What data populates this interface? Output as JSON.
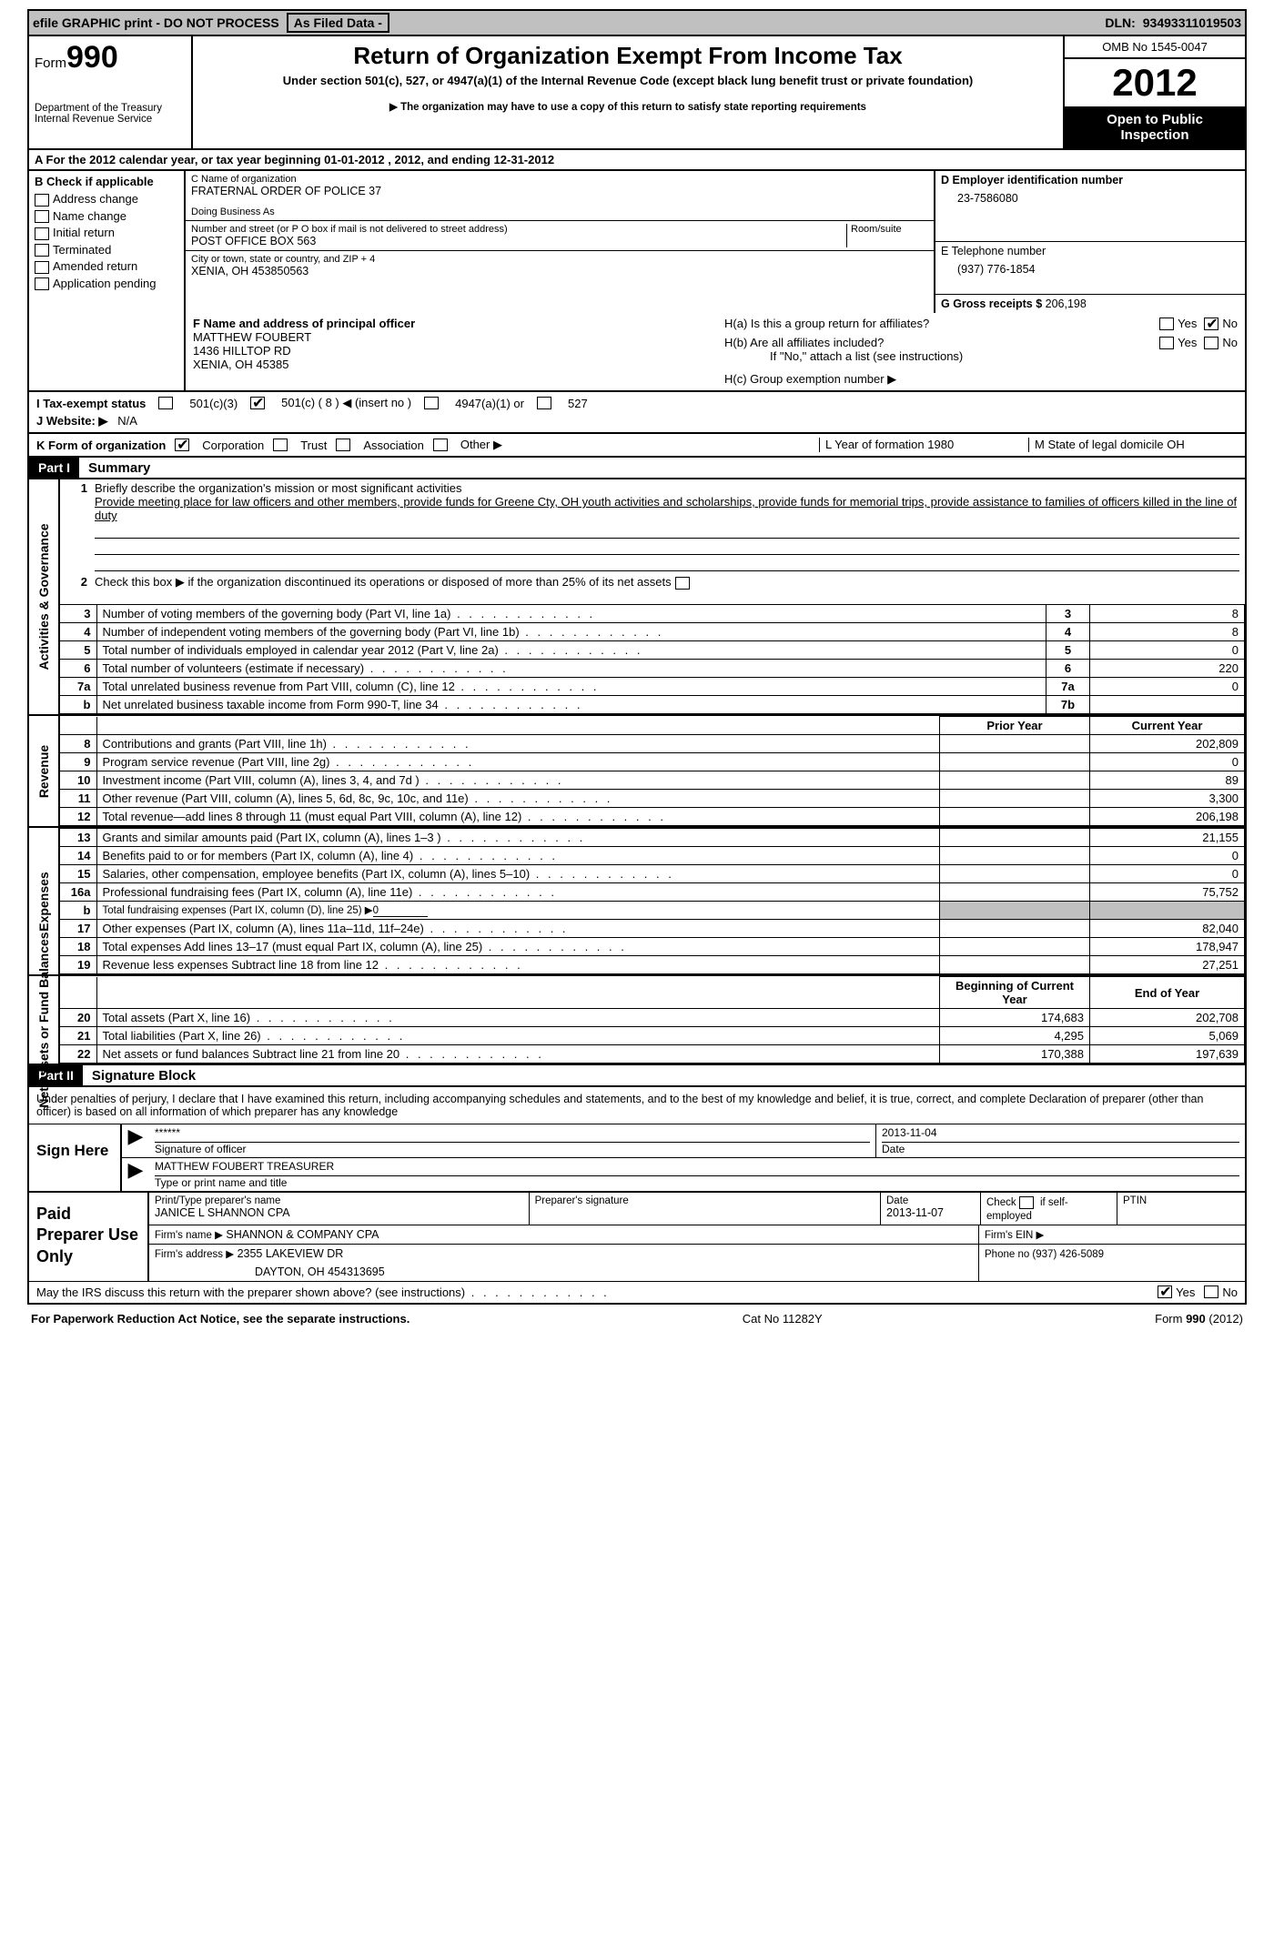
{
  "topbar": {
    "efile": "efile GRAPHIC print - DO NOT PROCESS",
    "asfiled": "As Filed Data -",
    "dln_label": "DLN:",
    "dln": "93493311019503"
  },
  "header": {
    "form_word": "Form",
    "form_num": "990",
    "dept1": "Department of the Treasury",
    "dept2": "Internal Revenue Service",
    "title": "Return of Organization Exempt From Income Tax",
    "subtitle": "Under section 501(c), 527, or 4947(a)(1) of the Internal Revenue Code (except black lung benefit trust or private foundation)",
    "note": "▶ The organization may have to use a copy of this return to satisfy state reporting requirements",
    "omb": "OMB No 1545-0047",
    "year": "2012",
    "inspect1": "Open to Public",
    "inspect2": "Inspection"
  },
  "rowA": "A  For the 2012 calendar year, or tax year beginning 01-01-2012     , 2012, and ending 12-31-2012",
  "boxB": {
    "label": "B  Check if applicable",
    "items": [
      "Address change",
      "Name change",
      "Initial return",
      "Terminated",
      "Amended return",
      "Application pending"
    ]
  },
  "boxC": {
    "name_label": "C Name of organization",
    "name": "FRATERNAL ORDER OF POLICE 37",
    "dba_label": "Doing Business As",
    "dba": "",
    "street_label": "Number and street (or P O  box if mail is not delivered to street address)",
    "room_label": "Room/suite",
    "street": "POST OFFICE BOX 563",
    "city_label": "City or town, state or country, and ZIP + 4",
    "city": "XENIA, OH  453850563"
  },
  "boxD": {
    "ein_label": "D Employer identification number",
    "ein": "23-7586080",
    "tel_label": "E Telephone number",
    "tel": "(937) 776-1854",
    "gross_label": "G Gross receipts $",
    "gross": "206,198"
  },
  "boxF": {
    "label": "F    Name and address of principal officer",
    "name": "MATTHEW FOUBERT",
    "street": "1436 HILLTOP RD",
    "city": "XENIA, OH  45385"
  },
  "boxH": {
    "ha": "H(a)   Is this a group return for affiliates?",
    "hb": "H(b)   Are all affiliates included?",
    "hb_note": "If \"No,\" attach a list  (see instructions)",
    "hc": "H(c)    Group exemption number ▶",
    "yes": "Yes",
    "no": "No"
  },
  "rowI": {
    "label": "I    Tax-exempt status",
    "opt1": "501(c)(3)",
    "opt2": "501(c) ( 8 ) ◀ (insert no )",
    "opt3": "4947(a)(1) or",
    "opt4": "527"
  },
  "rowJ": {
    "label": "J   Website: ▶",
    "val": "N/A"
  },
  "rowK": {
    "label": "K Form of organization",
    "opts": [
      "Corporation",
      "Trust",
      "Association",
      "Other ▶"
    ],
    "L": "L Year of formation  1980",
    "M": "M State of legal domicile   OH"
  },
  "part1": {
    "hdr": "Part I",
    "title": "Summary"
  },
  "summary": {
    "l1_label": "Briefly describe the organization's mission or most significant activities",
    "l1_text": "Provide meeting place for law officers and other members, provide funds for Greene Cty, OH youth activities and scholarships, provide funds for memorial trips, provide assistance to families of officers killed in the line of duty",
    "l2": "Check this box ▶       if the organization discontinued its operations or disposed of more than 25% of its net assets",
    "rows_gov": [
      {
        "n": "3",
        "t": "Number of voting members of the governing body (Part VI, line 1a)",
        "b": "3",
        "v": "8"
      },
      {
        "n": "4",
        "t": "Number of independent voting members of the governing body (Part VI, line 1b)",
        "b": "4",
        "v": "8"
      },
      {
        "n": "5",
        "t": "Total number of individuals employed in calendar year 2012 (Part V, line 2a)",
        "b": "5",
        "v": "0"
      },
      {
        "n": "6",
        "t": "Total number of volunteers (estimate if necessary)",
        "b": "6",
        "v": "220"
      },
      {
        "n": "7a",
        "t": "Total unrelated business revenue from Part VIII, column (C), line 12",
        "b": "7a",
        "v": "0"
      },
      {
        "n": "b",
        "t": "Net unrelated business taxable income from Form 990-T, line 34",
        "b": "7b",
        "v": ""
      }
    ],
    "hdr_prior": "Prior Year",
    "hdr_curr": "Current Year",
    "revenue": [
      {
        "n": "8",
        "t": "Contributions and grants (Part VIII, line 1h)",
        "p": "",
        "c": "202,809"
      },
      {
        "n": "9",
        "t": "Program service revenue (Part VIII, line 2g)",
        "p": "",
        "c": "0"
      },
      {
        "n": "10",
        "t": "Investment income (Part VIII, column (A), lines 3, 4, and 7d )",
        "p": "",
        "c": "89"
      },
      {
        "n": "11",
        "t": "Other revenue (Part VIII, column (A), lines 5, 6d, 8c, 9c, 10c, and 11e)",
        "p": "",
        "c": "3,300"
      },
      {
        "n": "12",
        "t": "Total revenue—add lines 8 through 11 (must equal Part VIII, column (A), line 12)",
        "p": "",
        "c": "206,198"
      }
    ],
    "expenses": [
      {
        "n": "13",
        "t": "Grants and similar amounts paid (Part IX, column (A), lines 1–3 )",
        "p": "",
        "c": "21,155"
      },
      {
        "n": "14",
        "t": "Benefits paid to or for members (Part IX, column (A), line 4)",
        "p": "",
        "c": "0"
      },
      {
        "n": "15",
        "t": "Salaries, other compensation, employee benefits (Part IX, column (A), lines 5–10)",
        "p": "",
        "c": "0"
      },
      {
        "n": "16a",
        "t": "Professional fundraising fees (Part IX, column (A), line 11e)",
        "p": "",
        "c": "75,752"
      },
      {
        "n": "b",
        "t": "Total fundraising expenses (Part IX, column (D), line 25)  ▶",
        "p": "shade",
        "c": "shade",
        "extra": "0"
      },
      {
        "n": "17",
        "t": "Other expenses (Part IX, column (A), lines 11a–11d, 11f–24e)",
        "p": "",
        "c": "82,040"
      },
      {
        "n": "18",
        "t": "Total expenses  Add lines 13–17 (must equal Part IX, column (A), line 25)",
        "p": "",
        "c": "178,947"
      },
      {
        "n": "19",
        "t": "Revenue less expenses  Subtract line 18 from line 12",
        "p": "",
        "c": "27,251"
      }
    ],
    "hdr_beg": "Beginning of Current Year",
    "hdr_end": "End of Year",
    "netassets": [
      {
        "n": "20",
        "t": "Total assets (Part X, line 16)",
        "p": "174,683",
        "c": "202,708"
      },
      {
        "n": "21",
        "t": "Total liabilities (Part X, line 26)",
        "p": "4,295",
        "c": "5,069"
      },
      {
        "n": "22",
        "t": "Net assets or fund balances  Subtract line 21 from line 20",
        "p": "170,388",
        "c": "197,639"
      }
    ]
  },
  "sides": {
    "gov": "Activities & Governance",
    "rev": "Revenue",
    "exp": "Expenses",
    "net": "Net Assets or Fund Balances"
  },
  "part2": {
    "hdr": "Part II",
    "title": "Signature Block"
  },
  "sig": {
    "perjury": "Under penalties of perjury, I declare that I have examined this return, including accompanying schedules and statements, and to the best of my knowledge and belief, it is true, correct, and complete  Declaration of preparer (other than officer) is based on all information of which preparer has any knowledge",
    "sign_here": "Sign Here",
    "stars": "******",
    "sig_officer": "Signature of officer",
    "date_label": "Date",
    "date": "2013-11-04",
    "name": "MATTHEW FOUBERT TREASURER",
    "name_label": "Type or print name and title"
  },
  "prep": {
    "label": "Paid Preparer Use Only",
    "r1": {
      "c1_label": "Print/Type preparer's name",
      "c1": "JANICE L SHANNON CPA",
      "c2_label": "Preparer's signature",
      "c2": "",
      "c3_label": "Date",
      "c3": "2013-11-07",
      "c4_label": "Check         if self-employed",
      "c5_label": "PTIN",
      "c5": ""
    },
    "r2": {
      "c1_label": "Firm's name      ▶",
      "c1": "SHANNON & COMPANY CPA",
      "c2_label": "Firm's EIN ▶",
      "c2": ""
    },
    "r3": {
      "c1_label": "Firm's address ▶",
      "c1": "2355 LAKEVIEW DR",
      "c1b": "DAYTON, OH  454313695",
      "c2_label": "Phone no  (937) 426-5089"
    }
  },
  "discuss": {
    "q": "May the IRS discuss this return with the preparer shown above? (see instructions)",
    "yes": "Yes",
    "no": "No"
  },
  "footer": {
    "left": "For Paperwork Reduction Act Notice, see the separate instructions.",
    "mid": "Cat No  11282Y",
    "right": "Form 990 (2012)"
  }
}
